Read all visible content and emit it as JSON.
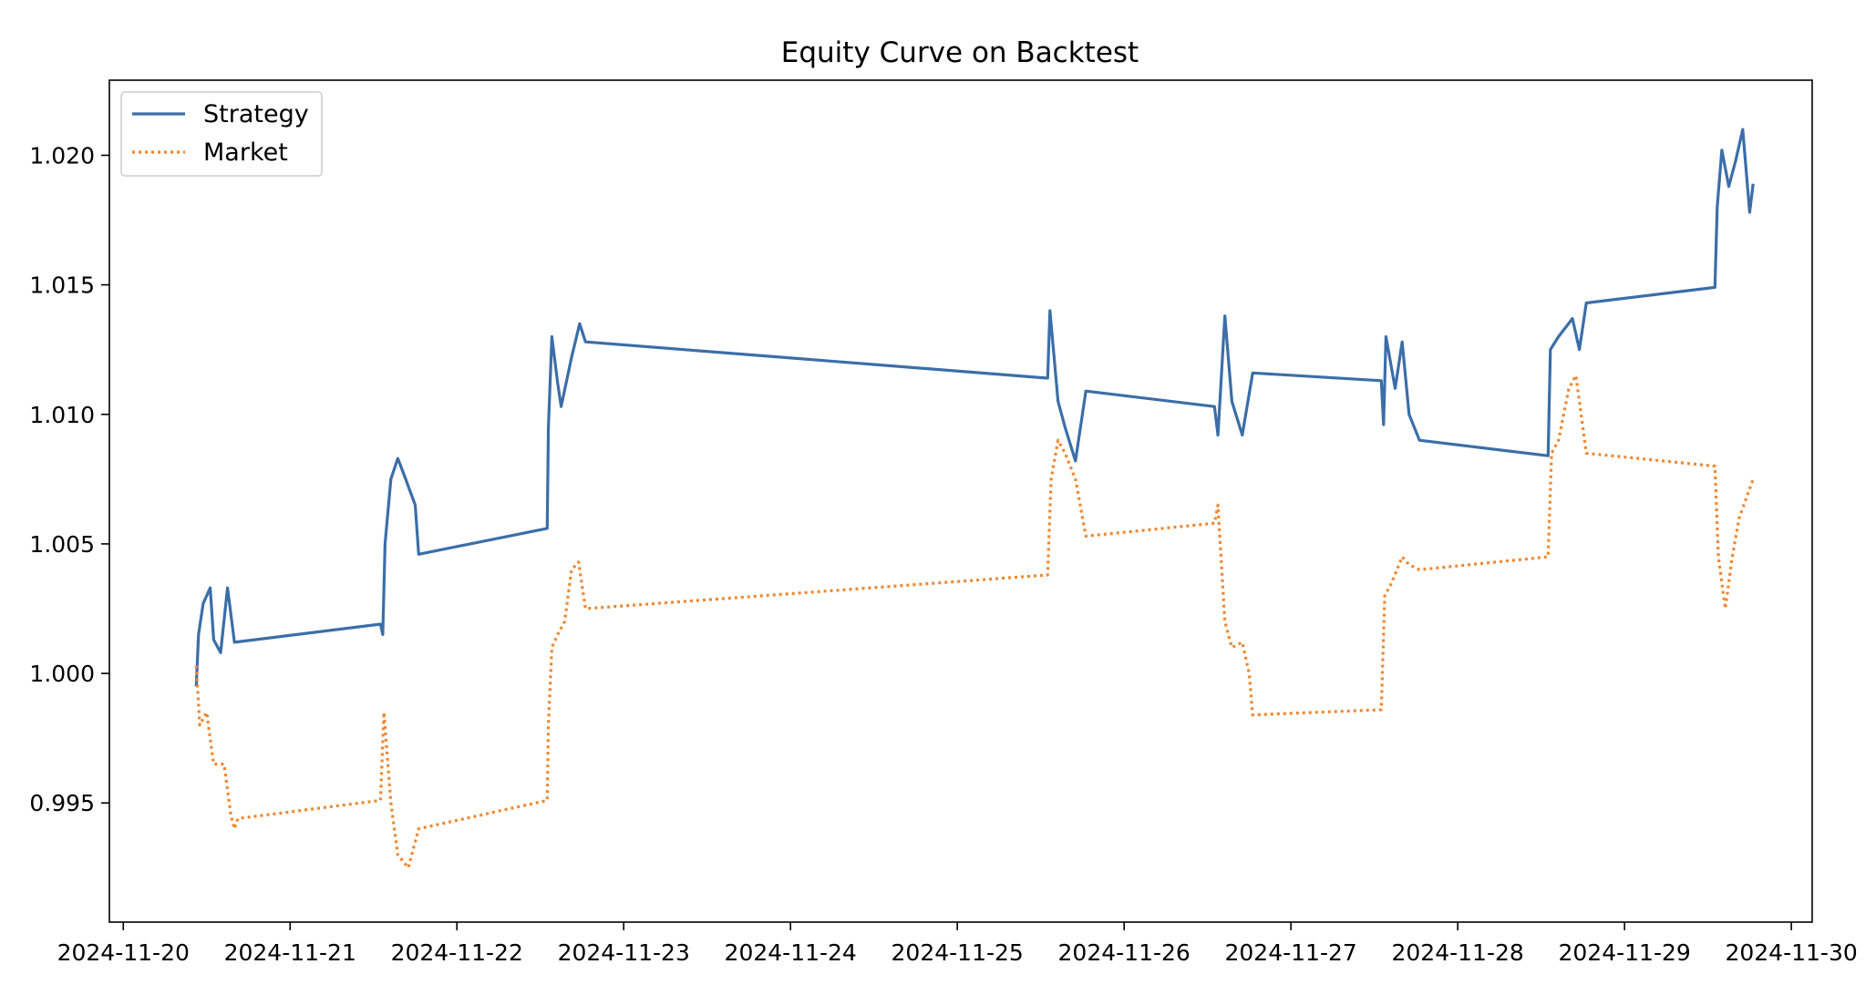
{
  "chart_data": {
    "type": "line",
    "title": "Equity Curve on Backtest",
    "xlabel": "",
    "ylabel": "",
    "x_ticks": [
      "2024-11-20",
      "2024-11-21",
      "2024-11-22",
      "2024-11-23",
      "2024-11-24",
      "2024-11-25",
      "2024-11-26",
      "2024-11-27",
      "2024-11-28",
      "2024-11-29",
      "2024-11-30"
    ],
    "y_ticks": [
      0.995,
      1.0,
      1.005,
      1.01,
      1.015,
      1.02
    ],
    "y_tick_labels": [
      "0.995",
      "1.000",
      "1.005",
      "1.010",
      "1.015",
      "1.020"
    ],
    "xlim": [
      "2024-11-19T22:00",
      "2024-11-30T03:00"
    ],
    "ylim": [
      0.9904,
      1.0229
    ],
    "grid": false,
    "legend_position": "top-left",
    "series": [
      {
        "name": "Strategy",
        "color": "#3b6ea8",
        "style": "solid",
        "points": [
          [
            "2024-11-20T10:30",
            0.9995
          ],
          [
            "2024-11-20T10:50",
            1.0015
          ],
          [
            "2024-11-20T11:30",
            1.0027
          ],
          [
            "2024-11-20T12:30",
            1.0033
          ],
          [
            "2024-11-20T13:00",
            1.0013
          ],
          [
            "2024-11-20T14:00",
            1.0008
          ],
          [
            "2024-11-20T15:00",
            1.0033
          ],
          [
            "2024-11-20T16:00",
            1.0012
          ],
          [
            "2024-11-21T13:00",
            1.0019
          ],
          [
            "2024-11-21T13:20",
            1.0015
          ],
          [
            "2024-11-21T13:40",
            1.005
          ],
          [
            "2024-11-21T14:30",
            1.0075
          ],
          [
            "2024-11-21T15:30",
            1.0083
          ],
          [
            "2024-11-21T16:30",
            1.0076
          ],
          [
            "2024-11-21T18:00",
            1.0065
          ],
          [
            "2024-11-21T18:30",
            1.0046
          ],
          [
            "2024-11-22T13:00",
            1.0056
          ],
          [
            "2024-11-22T13:10",
            1.0095
          ],
          [
            "2024-11-22T13:40",
            1.013
          ],
          [
            "2024-11-22T14:30",
            1.0112
          ],
          [
            "2024-11-22T15:00",
            1.0103
          ],
          [
            "2024-11-22T16:30",
            1.0122
          ],
          [
            "2024-11-22T17:40",
            1.0135
          ],
          [
            "2024-11-22T18:30",
            1.0128
          ],
          [
            "2024-11-25T13:00",
            1.0114
          ],
          [
            "2024-11-25T13:20",
            1.014
          ],
          [
            "2024-11-25T14:30",
            1.0105
          ],
          [
            "2024-11-25T15:30",
            1.0095
          ],
          [
            "2024-11-25T17:00",
            1.0082
          ],
          [
            "2024-11-25T18:30",
            1.0109
          ],
          [
            "2024-11-26T13:00",
            1.0103
          ],
          [
            "2024-11-26T13:30",
            1.0092
          ],
          [
            "2024-11-26T14:30",
            1.0138
          ],
          [
            "2024-11-26T15:30",
            1.0105
          ],
          [
            "2024-11-26T17:00",
            1.0092
          ],
          [
            "2024-11-26T18:30",
            1.0116
          ],
          [
            "2024-11-27T13:00",
            1.0113
          ],
          [
            "2024-11-27T13:20",
            1.0096
          ],
          [
            "2024-11-27T13:40",
            1.013
          ],
          [
            "2024-11-27T15:00",
            1.011
          ],
          [
            "2024-11-27T16:00",
            1.0128
          ],
          [
            "2024-11-27T17:00",
            1.01
          ],
          [
            "2024-11-27T18:30",
            1.009
          ],
          [
            "2024-11-28T13:00",
            1.0084
          ],
          [
            "2024-11-28T13:20",
            1.0125
          ],
          [
            "2024-11-28T14:30",
            1.013
          ],
          [
            "2024-11-28T16:30",
            1.0137
          ],
          [
            "2024-11-28T17:30",
            1.0125
          ],
          [
            "2024-11-28T18:30",
            1.0143
          ],
          [
            "2024-11-29T13:00",
            1.0149
          ],
          [
            "2024-11-29T13:20",
            1.018
          ],
          [
            "2024-11-29T14:00",
            1.0202
          ],
          [
            "2024-11-29T15:00",
            1.0188
          ],
          [
            "2024-11-29T16:00",
            1.0198
          ],
          [
            "2024-11-29T17:00",
            1.021
          ],
          [
            "2024-11-29T18:00",
            1.0178
          ],
          [
            "2024-11-29T18:30",
            1.0189
          ]
        ]
      },
      {
        "name": "Market",
        "color": "#f0872f",
        "style": "dotted",
        "points": [
          [
            "2024-11-20T10:30",
            1.0003
          ],
          [
            "2024-11-20T11:00",
            0.998
          ],
          [
            "2024-11-20T12:00",
            0.9985
          ],
          [
            "2024-11-20T13:00",
            0.9965
          ],
          [
            "2024-11-20T14:30",
            0.9965
          ],
          [
            "2024-11-20T15:30",
            0.9945
          ],
          [
            "2024-11-20T16:00",
            0.994
          ],
          [
            "2024-11-20T16:30",
            0.9944
          ],
          [
            "2024-11-21T13:00",
            0.9951
          ],
          [
            "2024-11-21T13:30",
            0.9985
          ],
          [
            "2024-11-21T14:30",
            0.995
          ],
          [
            "2024-11-21T15:30",
            0.993
          ],
          [
            "2024-11-21T17:00",
            0.9925
          ],
          [
            "2024-11-21T18:30",
            0.994
          ],
          [
            "2024-11-22T13:00",
            0.9951
          ],
          [
            "2024-11-22T13:10",
            0.998
          ],
          [
            "2024-11-22T13:40",
            1.001
          ],
          [
            "2024-11-22T14:30",
            1.0015
          ],
          [
            "2024-11-22T15:30",
            1.002
          ],
          [
            "2024-11-22T16:30",
            1.004
          ],
          [
            "2024-11-22T17:30",
            1.0043
          ],
          [
            "2024-11-22T18:30",
            1.0025
          ],
          [
            "2024-11-25T13:00",
            1.0038
          ],
          [
            "2024-11-25T13:30",
            1.0075
          ],
          [
            "2024-11-25T14:30",
            1.009
          ],
          [
            "2024-11-25T15:30",
            1.0085
          ],
          [
            "2024-11-25T17:00",
            1.0075
          ],
          [
            "2024-11-25T18:30",
            1.0053
          ],
          [
            "2024-11-26T13:00",
            1.0058
          ],
          [
            "2024-11-26T13:30",
            1.0065
          ],
          [
            "2024-11-26T14:30",
            1.002
          ],
          [
            "2024-11-26T15:30",
            1.001
          ],
          [
            "2024-11-26T17:00",
            1.0012
          ],
          [
            "2024-11-26T18:00",
            1.0
          ],
          [
            "2024-11-26T18:30",
            0.9984
          ],
          [
            "2024-11-27T13:00",
            0.9986
          ],
          [
            "2024-11-27T13:30",
            1.003
          ],
          [
            "2024-11-27T14:30",
            1.0035
          ],
          [
            "2024-11-27T16:00",
            1.0045
          ],
          [
            "2024-11-27T17:00",
            1.0042
          ],
          [
            "2024-11-27T18:30",
            1.004
          ],
          [
            "2024-11-28T13:00",
            1.0045
          ],
          [
            "2024-11-28T13:30",
            1.0085
          ],
          [
            "2024-11-28T14:30",
            1.009
          ],
          [
            "2024-11-28T16:00",
            1.011
          ],
          [
            "2024-11-28T17:00",
            1.0115
          ],
          [
            "2024-11-28T18:30",
            1.0085
          ],
          [
            "2024-11-29T13:00",
            1.008
          ],
          [
            "2024-11-29T13:30",
            1.0045
          ],
          [
            "2024-11-29T14:30",
            1.0025
          ],
          [
            "2024-11-29T15:30",
            1.0045
          ],
          [
            "2024-11-29T16:30",
            1.006
          ],
          [
            "2024-11-29T18:30",
            1.0075
          ]
        ]
      }
    ]
  }
}
